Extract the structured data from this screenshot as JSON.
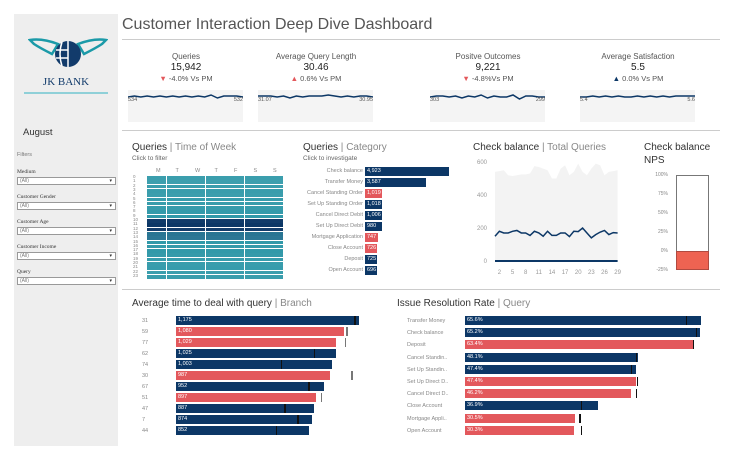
{
  "title": "Customer Interaction Deep Dive Dashboard",
  "colors": {
    "navy": "#0c3766",
    "red": "#e3585c",
    "teal": "#1b8ea0",
    "nps_fill": "#ee6352"
  },
  "sidebar": {
    "logo_text": "JK BANK",
    "logo_tagline": "TOGETHER WE PROSPER",
    "month": "August",
    "filters_label": "Filters",
    "filters": [
      {
        "label": "Medium",
        "value": "(All)"
      },
      {
        "label": "Customer Gender",
        "value": "(All)"
      },
      {
        "label": "Customer Age",
        "value": "(All)"
      },
      {
        "label": "Customer Income",
        "value": "(All)"
      },
      {
        "label": "Query",
        "value": "(All)"
      }
    ]
  },
  "kpis": [
    {
      "title": "Queries",
      "value": "15,942",
      "delta": "-4.0% Vs PM",
      "dir": "down",
      "start": "534",
      "end": "532",
      "spark": [
        5,
        6,
        5,
        6,
        5,
        6,
        5,
        6,
        5,
        6,
        5,
        6,
        5,
        7,
        4,
        6,
        6,
        6,
        5
      ]
    },
    {
      "title": "Average Query Length",
      "value": "30.46",
      "delta": "0.6% Vs PM",
      "dir": "up",
      "start": "31.07",
      "end": "30.95",
      "spark": [
        6,
        6,
        6,
        5,
        6,
        4,
        6,
        5,
        6,
        6,
        6,
        7,
        6,
        5,
        6,
        5,
        6,
        6,
        5
      ]
    },
    {
      "title": "Positve Outcomes",
      "value": "9,221",
      "delta": "-4.8%Vs PM",
      "dir": "down",
      "start": "303",
      "end": "299",
      "spark": [
        5,
        6,
        6,
        5,
        6,
        4,
        6,
        5,
        7,
        4,
        6,
        5,
        5,
        7,
        3,
        6,
        6,
        5,
        5
      ]
    },
    {
      "title": "Average Satisfaction",
      "value": "5.5",
      "delta": "0.0% Vs PM",
      "dir": "up",
      "start": "5.4",
      "end": "5.6",
      "spark": [
        5,
        5,
        6,
        5,
        6,
        5,
        6,
        5,
        5,
        6,
        5,
        6,
        5,
        6,
        5,
        6,
        6,
        6,
        6
      ]
    }
  ],
  "heatmap": {
    "title": "Queries",
    "title_suffix": "Time of Week",
    "subtitle": "Click to filter",
    "days": [
      "M",
      "T",
      "W",
      "T",
      "F",
      "S",
      "S"
    ],
    "hours": [
      "0",
      "1",
      "2",
      "3",
      "4",
      "5",
      "6",
      "7",
      "8",
      "9",
      "10",
      "11",
      "12",
      "13",
      "14",
      "15",
      "16",
      "17",
      "18",
      "19",
      "20",
      "21",
      "22",
      "23"
    ],
    "row_intensity": [
      0.3,
      0.25,
      0.3,
      0.35,
      0.3,
      0.4,
      0.35,
      0.4,
      0.45,
      0.5,
      0.9,
      1,
      0.85,
      0.6,
      0.55,
      0.5,
      0.45,
      0.5,
      0.45,
      0.4,
      0.35,
      0.4,
      0.3,
      0.35
    ]
  },
  "category": {
    "title": "Queries",
    "title_suffix": "Category",
    "subtitle": "Click to investigate",
    "items": [
      {
        "label": "Check balance",
        "value": 4923,
        "text": "4,923",
        "color": "navy"
      },
      {
        "label": "Transfer Money",
        "value": 3587,
        "text": "3,587",
        "color": "navy"
      },
      {
        "label": "Cancel Standing Order",
        "value": 1019,
        "text": "1,019",
        "color": "red"
      },
      {
        "label": "Set Up Standing Order",
        "value": 1018,
        "text": "1,018",
        "color": "navy"
      },
      {
        "label": "Cancel Direct Debit",
        "value": 1006,
        "text": "1,006",
        "color": "navy"
      },
      {
        "label": "Set Up Direct Debit",
        "value": 980,
        "text": "980",
        "color": "navy"
      },
      {
        "label": "Mortgage Application",
        "value": 747,
        "text": "747",
        "color": "red"
      },
      {
        "label": "Close Account",
        "value": 726,
        "text": "726",
        "color": "red"
      },
      {
        "label": "Deposit",
        "value": 725,
        "text": "725",
        "color": "navy"
      },
      {
        "label": "Open Account",
        "value": 696,
        "text": "696",
        "color": "navy"
      }
    ]
  },
  "check_balance": {
    "title": "Check balance",
    "title_suffix": "Total Queries",
    "yticks": [
      "600",
      "400",
      "200",
      "0"
    ],
    "xticks": [
      "2",
      "5",
      "8",
      "11",
      "14",
      "17",
      "20",
      "23",
      "26",
      "29"
    ],
    "line": [
      150,
      180,
      170,
      170,
      180,
      185,
      170,
      170,
      155,
      180,
      170,
      150,
      180,
      155,
      155,
      170,
      170,
      148,
      180,
      178,
      200,
      170,
      140,
      160,
      175,
      185,
      160,
      172,
      170
    ],
    "total": [
      540,
      545,
      550,
      520,
      515,
      520,
      525,
      525,
      530,
      575,
      570,
      560,
      550,
      500,
      500,
      560,
      580,
      520,
      540,
      590,
      540,
      520,
      560,
      590,
      580,
      520,
      540,
      545,
      550
    ]
  },
  "nps": {
    "title": "Check balance",
    "title2": "NPS",
    "ticks": [
      "100%",
      "75%",
      "50%",
      "25%",
      "0%",
      "-25%"
    ],
    "value_pct": -25
  },
  "branch": {
    "title": "Average time to deal with query",
    "title_suffix": "Branch",
    "items": [
      {
        "label": "31",
        "value": 1175,
        "text": "1,175",
        "target": 1143,
        "color": "navy"
      },
      {
        "label": "59",
        "value": 1080,
        "text": "1,080",
        "target": 1092,
        "color": "red"
      },
      {
        "label": "77",
        "value": 1029,
        "text": "1,029",
        "target": 1085,
        "color": "red"
      },
      {
        "label": "62",
        "value": 1025,
        "text": "1,025",
        "target": 886,
        "color": "navy"
      },
      {
        "label": "74",
        "value": 1003,
        "text": "1,003",
        "target": 674,
        "color": "navy"
      },
      {
        "label": "30",
        "value": 987,
        "text": "987",
        "target": 1124,
        "color": "red"
      },
      {
        "label": "67",
        "value": 952,
        "text": "952",
        "target": 848,
        "color": "navy"
      },
      {
        "label": "51",
        "value": 897,
        "text": "897",
        "target": 931,
        "color": "red"
      },
      {
        "label": "47",
        "value": 887,
        "text": "887",
        "target": 694,
        "color": "navy"
      },
      {
        "label": "7",
        "value": 874,
        "text": "874",
        "target": 777,
        "color": "navy"
      },
      {
        "label": "44",
        "value": 852,
        "text": "852",
        "target": 642,
        "color": "navy"
      }
    ]
  },
  "resolution": {
    "title": "Issue Resolution Rate",
    "title_suffix": "Query",
    "items": [
      {
        "label": "Transfer Money",
        "value": 65.6,
        "text": "65.6%",
        "target": 61.4,
        "color": "navy"
      },
      {
        "label": "Check balance",
        "value": 65.2,
        "text": "65.2%",
        "target": 64.1,
        "color": "navy"
      },
      {
        "label": "Deposit",
        "value": 63.4,
        "text": "63.4%",
        "target": 63.3,
        "color": "red"
      },
      {
        "label": "Cancel Standin..",
        "value": 48.1,
        "text": "48.1%",
        "target": 47.5,
        "color": "navy"
      },
      {
        "label": "Set Up Standin..",
        "value": 47.4,
        "text": "47.4%",
        "target": 46.1,
        "color": "navy"
      },
      {
        "label": "Set Up Direct D..",
        "value": 47.4,
        "text": "47.4%",
        "target": 47.8,
        "color": "red"
      },
      {
        "label": "Cancel Direct D..",
        "value": 46.2,
        "text": "46.2%",
        "target": 47.4,
        "color": "red"
      },
      {
        "label": "Close Account",
        "value": 36.9,
        "text": "36.9%",
        "target": 32.2,
        "color": "navy"
      },
      {
        "label": "Mortgage Appli..",
        "value": 30.5,
        "text": "30.5%",
        "target": 31.7,
        "color": "red"
      },
      {
        "label": "Open Account",
        "value": 30.3,
        "text": "30.3%",
        "target": 32.2,
        "color": "red"
      }
    ]
  }
}
